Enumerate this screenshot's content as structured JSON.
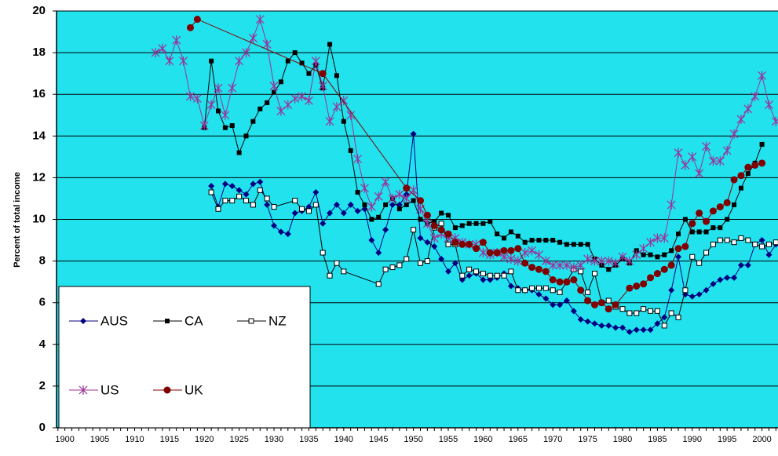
{
  "chart_data": {
    "type": "line",
    "y_label": "Percent of total income",
    "xlim": [
      1898.8,
      2002.3
    ],
    "xticks": [
      1900,
      1905,
      1910,
      1915,
      1920,
      1925,
      1930,
      1935,
      1940,
      1945,
      1950,
      1955,
      1960,
      1965,
      1970,
      1975,
      1980,
      1985,
      1990,
      1995,
      2000
    ],
    "ylim": [
      0,
      20
    ],
    "yticks": [
      0,
      2,
      4,
      6,
      8,
      10,
      12,
      14,
      16,
      18,
      20
    ],
    "grid": true,
    "background": "#22e2ee",
    "legend": "bottom-left",
    "series": [
      {
        "name": "AUS",
        "color": "#000080",
        "marker": "diamond",
        "x": [
          1921,
          1922,
          1923,
          1924,
          1925,
          1926,
          1927,
          1928,
          1929,
          1930,
          1931,
          1932,
          1933,
          1934,
          1935,
          1936,
          1937,
          1938,
          1939,
          1940,
          1941,
          1942,
          1943,
          1944,
          1945,
          1946,
          1947,
          1948,
          1949,
          1950,
          1951,
          1952,
          1953,
          1954,
          1955,
          1956,
          1957,
          1958,
          1959,
          1960,
          1961,
          1962,
          1963,
          1964,
          1965,
          1966,
          1967,
          1968,
          1969,
          1970,
          1971,
          1972,
          1973,
          1974,
          1975,
          1976,
          1977,
          1978,
          1979,
          1980,
          1981,
          1982,
          1983,
          1984,
          1985,
          1986,
          1987,
          1988,
          1989,
          1990,
          1991,
          1992,
          1993,
          1994,
          1995,
          1996,
          1997,
          1998,
          1999,
          2000,
          2001,
          2002
        ],
        "values": [
          11.6,
          10.6,
          11.7,
          11.6,
          11.4,
          11.2,
          11.7,
          11.8,
          10.7,
          9.7,
          9.4,
          9.3,
          10.3,
          10.4,
          10.6,
          11.3,
          9.8,
          10.3,
          10.7,
          10.3,
          10.7,
          10.4,
          10.5,
          9.0,
          8.4,
          9.5,
          10.7,
          10.7,
          11.2,
          14.1,
          9.1,
          8.9,
          8.7,
          8.1,
          7.5,
          7.9,
          7.1,
          7.3,
          7.4,
          7.1,
          7.1,
          7.2,
          7.4,
          6.8,
          6.7,
          6.6,
          6.6,
          6.4,
          6.2,
          5.9,
          5.9,
          6.1,
          5.6,
          5.2,
          5.1,
          5.0,
          4.9,
          4.9,
          4.8,
          4.8,
          4.6,
          4.7,
          4.7,
          4.7,
          5.0,
          5.3,
          6.6,
          8.2,
          6.4,
          6.3,
          6.4,
          6.6,
          6.9,
          7.1,
          7.2,
          7.2,
          7.8,
          7.8,
          8.8,
          9.0,
          8.3,
          8.8
        ]
      },
      {
        "name": "CA",
        "color": "#000000",
        "marker": "square",
        "x": [
          1920,
          1921,
          1922,
          1923,
          1924,
          1925,
          1926,
          1927,
          1928,
          1929,
          1930,
          1931,
          1932,
          1933,
          1934,
          1935,
          1936,
          1937,
          1938,
          1939,
          1940,
          1941,
          1942,
          1943,
          1944,
          1945,
          1946,
          1947,
          1948,
          1949,
          1950,
          1951,
          1952,
          1953,
          1954,
          1955,
          1956,
          1957,
          1958,
          1959,
          1960,
          1961,
          1962,
          1963,
          1964,
          1965,
          1966,
          1967,
          1968,
          1969,
          1970,
          1971,
          1972,
          1973,
          1974,
          1975,
          1976,
          1977,
          1978,
          1979,
          1980,
          1981,
          1982,
          1983,
          1984,
          1985,
          1986,
          1987,
          1988,
          1989,
          1990,
          1991,
          1992,
          1993,
          1994,
          1995,
          1996,
          1997,
          1998,
          1999,
          2000
        ],
        "values": [
          14.4,
          17.6,
          15.2,
          14.4,
          14.5,
          13.2,
          14.0,
          14.7,
          15.3,
          15.6,
          16.1,
          16.6,
          17.6,
          18.0,
          17.5,
          17.0,
          17.4,
          16.3,
          18.4,
          16.9,
          14.7,
          13.3,
          11.3,
          10.7,
          10.0,
          10.1,
          10.7,
          11.0,
          10.5,
          10.7,
          10.9,
          10.0,
          9.8,
          9.9,
          10.3,
          10.2,
          9.6,
          9.7,
          9.8,
          9.8,
          9.8,
          9.9,
          9.3,
          9.1,
          9.4,
          9.2,
          8.9,
          9.0,
          9.0,
          9.0,
          9.0,
          8.9,
          8.8,
          8.8,
          8.8,
          8.8,
          8.1,
          7.8,
          7.6,
          7.8,
          8.1,
          7.9,
          8.5,
          8.3,
          8.3,
          8.2,
          8.3,
          8.5,
          9.3,
          10.0,
          9.4,
          9.4,
          9.4,
          9.6,
          9.6,
          10.0,
          10.7,
          11.5,
          12.2,
          12.7,
          13.6
        ]
      },
      {
        "name": "NZ",
        "color": "#000000",
        "marker": "open-square",
        "x": [
          1921,
          1922,
          1923,
          1924,
          1925,
          1926,
          1927,
          1928,
          1929,
          1930,
          1933,
          1934,
          1935,
          1936,
          1937,
          1938,
          1939,
          1940,
          1945,
          1946,
          1947,
          1948,
          1949,
          1950,
          1951,
          1952,
          1953,
          1954,
          1955,
          1956,
          1957,
          1958,
          1959,
          1960,
          1961,
          1962,
          1963,
          1964,
          1965,
          1966,
          1967,
          1968,
          1969,
          1970,
          1971,
          1972,
          1973,
          1974,
          1975,
          1976,
          1977,
          1978,
          1979,
          1980,
          1981,
          1982,
          1983,
          1984,
          1985,
          1986,
          1987,
          1988,
          1989,
          1990,
          1991,
          1992,
          1993,
          1994,
          1995,
          1996,
          1997,
          1998,
          1999,
          2000,
          2001,
          2002
        ],
        "values": [
          11.3,
          10.5,
          10.9,
          10.9,
          11.1,
          10.9,
          10.7,
          11.4,
          11.0,
          10.6,
          10.9,
          10.5,
          10.4,
          10.7,
          8.4,
          7.3,
          7.9,
          7.5,
          6.9,
          7.6,
          7.7,
          7.8,
          8.1,
          9.5,
          7.9,
          8.0,
          9.6,
          9.8,
          8.8,
          8.8,
          7.3,
          7.6,
          7.5,
          7.4,
          7.3,
          7.3,
          7.3,
          7.5,
          6.6,
          6.6,
          6.7,
          6.7,
          6.7,
          6.6,
          6.5,
          7.0,
          7.6,
          7.5,
          6.5,
          7.4,
          6.0,
          6.1,
          5.8,
          5.7,
          5.5,
          5.5,
          5.7,
          5.6,
          5.6,
          4.9,
          5.5,
          5.3,
          6.6,
          8.2,
          7.9,
          8.4,
          8.8,
          9.0,
          9.0,
          8.9,
          9.1,
          9.0,
          8.8,
          8.7,
          8.8,
          8.9
        ]
      },
      {
        "name": "US",
        "color": "#993399",
        "marker": "star",
        "x": [
          1913,
          1914,
          1915,
          1916,
          1917,
          1918,
          1919,
          1920,
          1921,
          1922,
          1923,
          1924,
          1925,
          1926,
          1927,
          1928,
          1929,
          1930,
          1931,
          1932,
          1933,
          1934,
          1935,
          1936,
          1937,
          1938,
          1939,
          1940,
          1941,
          1942,
          1943,
          1944,
          1945,
          1946,
          1947,
          1948,
          1949,
          1950,
          1951,
          1952,
          1953,
          1954,
          1955,
          1956,
          1957,
          1958,
          1959,
          1960,
          1961,
          1962,
          1963,
          1964,
          1965,
          1966,
          1967,
          1968,
          1969,
          1970,
          1971,
          1972,
          1973,
          1974,
          1975,
          1976,
          1977,
          1978,
          1979,
          1980,
          1981,
          1982,
          1983,
          1984,
          1985,
          1986,
          1987,
          1988,
          1989,
          1990,
          1991,
          1992,
          1993,
          1994,
          1995,
          1996,
          1997,
          1998,
          1999,
          2000,
          2001,
          2002
        ],
        "values": [
          18.0,
          18.2,
          17.6,
          18.6,
          17.6,
          15.9,
          15.8,
          14.5,
          15.5,
          16.3,
          15.0,
          16.3,
          17.6,
          18.0,
          18.7,
          19.6,
          18.4,
          16.4,
          15.2,
          15.5,
          15.8,
          15.9,
          15.7,
          17.6,
          16.4,
          14.7,
          15.4,
          15.7,
          15.0,
          12.9,
          11.5,
          10.6,
          11.1,
          11.8,
          11.0,
          11.2,
          11.0,
          11.4,
          10.5,
          9.8,
          9.1,
          9.3,
          9.1,
          9.1,
          8.9,
          8.8,
          8.8,
          8.4,
          8.3,
          8.4,
          8.2,
          8.1,
          8.0,
          8.4,
          8.5,
          8.3,
          8.0,
          7.8,
          7.8,
          7.8,
          7.7,
          7.8,
          8.1,
          8.0,
          8.0,
          8.0,
          7.9,
          8.2,
          8.0,
          8.3,
          8.6,
          8.9,
          9.1,
          9.1,
          10.7,
          13.2,
          12.6,
          13.0,
          12.2,
          13.5,
          12.8,
          12.8,
          13.3,
          14.1,
          14.8,
          15.3,
          15.9,
          16.9,
          15.5,
          14.7
        ]
      },
      {
        "name": "UK",
        "color": "#800000",
        "marker": "circle",
        "x": [
          1918,
          1919,
          1937,
          1949,
          1951,
          1952,
          1953,
          1954,
          1955,
          1956,
          1957,
          1958,
          1959,
          1960,
          1961,
          1962,
          1963,
          1964,
          1965,
          1966,
          1967,
          1968,
          1969,
          1970,
          1971,
          1972,
          1973,
          1974,
          1975,
          1976,
          1977,
          1978,
          1979,
          1981,
          1982,
          1983,
          1984,
          1985,
          1986,
          1987,
          1988,
          1989,
          1990,
          1991,
          1992,
          1993,
          1994,
          1995,
          1996,
          1997,
          1998,
          1999,
          2000
        ],
        "values": [
          19.2,
          19.6,
          17.0,
          11.5,
          10.9,
          10.2,
          9.7,
          9.5,
          9.3,
          8.9,
          8.8,
          8.8,
          8.6,
          8.9,
          8.4,
          8.4,
          8.5,
          8.5,
          8.6,
          7.9,
          7.7,
          7.6,
          7.5,
          7.1,
          7.0,
          7.0,
          7.1,
          6.6,
          6.1,
          5.9,
          6.0,
          5.7,
          5.9,
          6.7,
          6.8,
          6.9,
          7.2,
          7.4,
          7.6,
          7.8,
          8.6,
          8.7,
          9.8,
          10.3,
          9.9,
          10.4,
          10.6,
          10.8,
          11.9,
          12.1,
          12.5,
          12.6,
          12.7
        ]
      }
    ]
  }
}
